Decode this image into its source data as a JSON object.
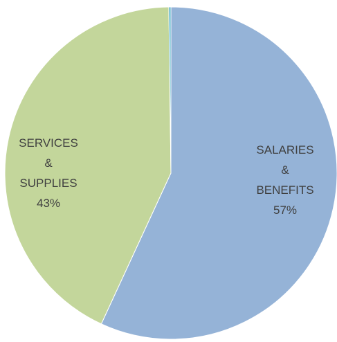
{
  "chart_data": {
    "type": "pie",
    "slices": [
      {
        "label_lines": [
          "SALARIES",
          "&",
          "BENEFITS"
        ],
        "value": 57,
        "percent_label": "57%",
        "color": "#95b3d7"
      },
      {
        "label_lines": [
          "SERVICES",
          "&",
          "SUPPLIES"
        ],
        "value": 43,
        "percent_label": "43%",
        "color": "#c3d69b"
      },
      {
        "label_lines": [],
        "value": 0.2,
        "percent_label": "",
        "color": "#4bacc6"
      }
    ],
    "start_angle": "top (12 o'clock)",
    "direction": "clockwise",
    "legend": "none",
    "labels": "inside slices"
  }
}
